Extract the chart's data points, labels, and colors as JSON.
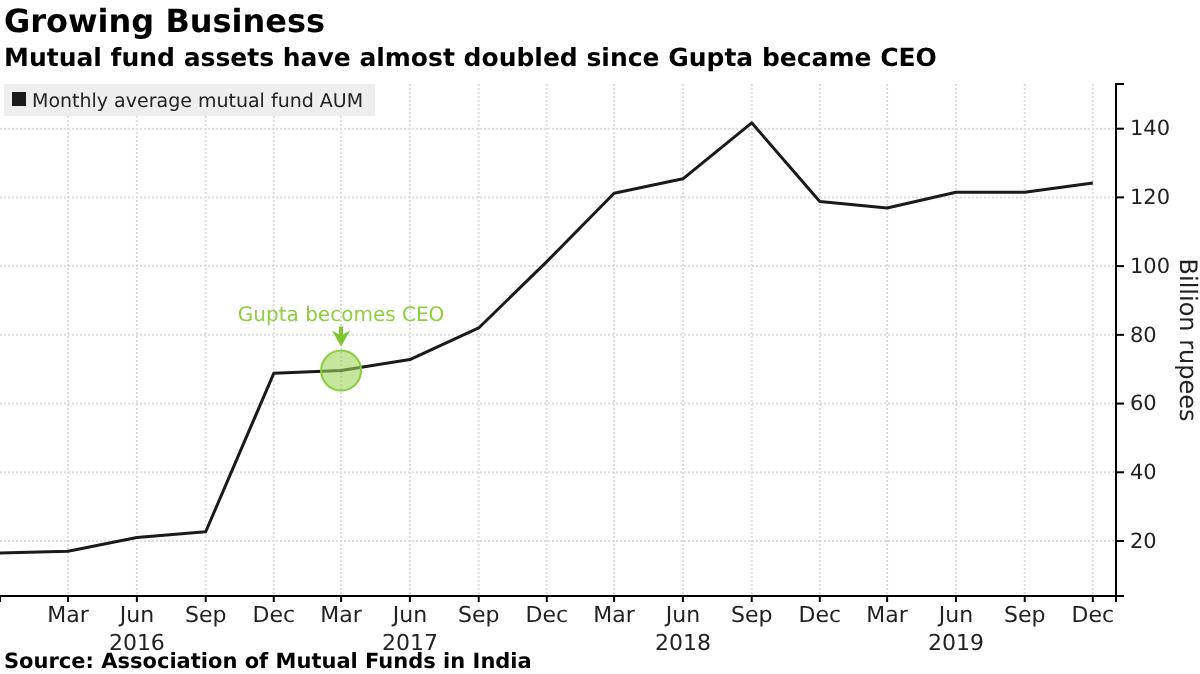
{
  "chart_data": {
    "type": "line",
    "title": "Growing Business",
    "subtitle": "Mutual fund assets have almost doubled since Gupta became CEO",
    "ylabel": "Billion rupees",
    "x": [
      "2015-12",
      "2016-03",
      "2016-06",
      "2016-09",
      "2016-12",
      "2017-03",
      "2017-06",
      "2017-09",
      "2017-12",
      "2018-03",
      "2018-06",
      "2018-09",
      "2018-12",
      "2019-03",
      "2019-06",
      "2019-09",
      "2019-12"
    ],
    "series": [
      {
        "name": "Monthly average mutual fund AUM",
        "color": "#1a1a1a",
        "values": [
          16.5,
          17,
          21,
          22.7,
          68.8,
          69.6,
          72.8,
          82,
          101.3,
          121.2,
          125.4,
          141.7,
          118.8,
          116.9,
          121.5,
          121.5,
          124.2
        ]
      }
    ],
    "xlim": [
      "2015-12",
      "2020-01"
    ],
    "xticks": [
      {
        "value": "2016-03",
        "label": "Mar"
      },
      {
        "value": "2016-06",
        "label": "Jun\n2016"
      },
      {
        "value": "2016-09",
        "label": "Sep"
      },
      {
        "value": "2016-12",
        "label": "Dec"
      },
      {
        "value": "2017-03",
        "label": "Mar"
      },
      {
        "value": "2017-06",
        "label": "Jun\n2017"
      },
      {
        "value": "2017-09",
        "label": "Sep"
      },
      {
        "value": "2017-12",
        "label": "Dec"
      },
      {
        "value": "2018-03",
        "label": "Mar"
      },
      {
        "value": "2018-06",
        "label": "Jun\n2018"
      },
      {
        "value": "2018-09",
        "label": "Sep"
      },
      {
        "value": "2018-12",
        "label": "Dec"
      },
      {
        "value": "2019-03",
        "label": "Mar"
      },
      {
        "value": "2019-06",
        "label": "Jun\n2019"
      },
      {
        "value": "2019-09",
        "label": "Sep"
      },
      {
        "value": "2019-12",
        "label": "Dec"
      }
    ],
    "ylim": [
      4,
      153
    ],
    "yticks": [
      20,
      40,
      60,
      80,
      100,
      120,
      140
    ],
    "grid": true,
    "legend": "top left",
    "marker": "none",
    "line_style": "solid",
    "annotations": [
      {
        "text": "Gupta becomes CEO",
        "x": "2017-03",
        "y": 69.6
      },
      "Source: Association of Mutual Funds in India"
    ]
  }
}
